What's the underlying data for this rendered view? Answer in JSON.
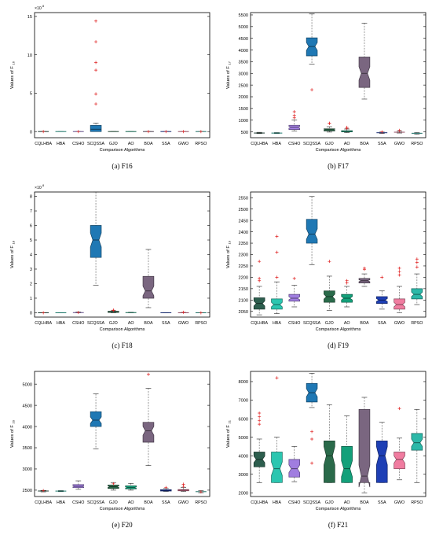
{
  "figure": {
    "x_label": "Comparison Algorithms",
    "categories": [
      "CQLHBA",
      "HBA",
      "CSHO",
      "SCQSSA",
      "GJO",
      "AO",
      "BOA",
      "SSA",
      "GWO",
      "RPSO"
    ],
    "colors": [
      "#2d5e4e",
      "#2bc6b0",
      "#a07de0",
      "#1f78b4",
      "#2a6a4a",
      "#13a07a",
      "#7a6680",
      "#1e3fb5",
      "#f07ca0",
      "#2cb8a8"
    ]
  },
  "chart_data": [
    {
      "id": "F16",
      "type": "box",
      "caption": "(a) F16",
      "ylabel": "Values of F",
      "ylabel_sub": "16",
      "multiplier": "×10",
      "multiplier_exp": "8",
      "ylim": [
        -0.8,
        15.5
      ],
      "yticks": [
        0,
        5,
        10,
        15
      ],
      "ytick_labels": [
        "0",
        "5",
        "10",
        "15"
      ],
      "notched": false,
      "boxes": [
        {
          "q1": 0,
          "med": 0,
          "q3": 0,
          "wl": 0,
          "wh": 0,
          "out": [
            0
          ]
        },
        {
          "q1": 0,
          "med": 0,
          "q3": 0,
          "wl": 0,
          "wh": 0,
          "out": []
        },
        {
          "q1": 0,
          "med": 0,
          "q3": 0,
          "wl": 0,
          "wh": 0,
          "out": [
            0
          ]
        },
        {
          "q1": 0,
          "med": 0.3,
          "q3": 0.8,
          "wl": 0,
          "wh": 1.1,
          "out": [
            14.4,
            11.7,
            9.0,
            8.0,
            4.9,
            3.6
          ]
        },
        {
          "q1": 0,
          "med": 0,
          "q3": 0,
          "wl": 0,
          "wh": 0,
          "out": []
        },
        {
          "q1": 0,
          "med": 0,
          "q3": 0,
          "wl": 0,
          "wh": 0,
          "out": []
        },
        {
          "q1": 0,
          "med": 0,
          "q3": 0,
          "wl": 0,
          "wh": 0,
          "out": [
            0
          ]
        },
        {
          "q1": 0,
          "med": 0,
          "q3": 0,
          "wl": 0,
          "wh": 0,
          "out": [
            0
          ]
        },
        {
          "q1": 0,
          "med": 0,
          "q3": 0,
          "wl": 0,
          "wh": 0,
          "out": [
            0
          ]
        },
        {
          "q1": 0,
          "med": 0,
          "q3": 0,
          "wl": 0,
          "wh": 0,
          "out": [
            0
          ]
        }
      ]
    },
    {
      "id": "F17",
      "type": "box",
      "caption": "(b) F17",
      "ylabel": "Values of F",
      "ylabel_sub": "17",
      "multiplier": "",
      "multiplier_exp": "",
      "ylim": [
        250,
        5600
      ],
      "yticks": [
        500,
        1000,
        1500,
        2000,
        2500,
        3000,
        3500,
        4000,
        4500,
        5000,
        5500
      ],
      "ytick_labels": [
        "500",
        "1000",
        "1500",
        "2000",
        "2500",
        "3000",
        "3500",
        "4000",
        "4500",
        "5000",
        "5500"
      ],
      "notched": true,
      "boxes": [
        {
          "q1": 440,
          "med": 450,
          "q3": 462,
          "wl": 430,
          "wh": 480,
          "out": []
        },
        {
          "q1": 440,
          "med": 448,
          "q3": 458,
          "wl": 430,
          "wh": 470,
          "out": []
        },
        {
          "q1": 600,
          "med": 700,
          "q3": 780,
          "wl": 540,
          "wh": 1000,
          "out": [
            1200,
            1360,
            1100
          ]
        },
        {
          "q1": 3750,
          "med": 4150,
          "q3": 4520,
          "wl": 3400,
          "wh": 5540,
          "out": [
            2300
          ]
        },
        {
          "q1": 540,
          "med": 590,
          "q3": 630,
          "wl": 490,
          "wh": 720,
          "out": [
            860,
            870
          ]
        },
        {
          "q1": 500,
          "med": 520,
          "q3": 550,
          "wl": 470,
          "wh": 620,
          "out": [
            650,
            690
          ]
        },
        {
          "q1": 2400,
          "med": 3000,
          "q3": 3700,
          "wl": 1900,
          "wh": 5150,
          "out": []
        },
        {
          "q1": 450,
          "med": 462,
          "q3": 475,
          "wl": 430,
          "wh": 490,
          "out": [
            500
          ]
        },
        {
          "q1": 470,
          "med": 485,
          "q3": 500,
          "wl": 450,
          "wh": 530,
          "out": [
            560
          ]
        },
        {
          "q1": 420,
          "med": 440,
          "q3": 455,
          "wl": 400,
          "wh": 470,
          "out": []
        }
      ]
    },
    {
      "id": "F18",
      "type": "box",
      "caption": "(c) F18",
      "ylabel": "Values of F",
      "ylabel_sub": "18",
      "multiplier": "×10",
      "multiplier_exp": "8",
      "ylim": [
        -0.3,
        8.3
      ],
      "yticks": [
        0,
        1,
        2,
        3,
        4,
        5,
        6,
        7,
        8
      ],
      "ytick_labels": [
        "0",
        "1",
        "2",
        "3",
        "4",
        "5",
        "6",
        "7",
        "8"
      ],
      "notched": true,
      "boxes": [
        {
          "q1": 0,
          "med": 0,
          "q3": 0,
          "wl": 0,
          "wh": 0,
          "out": [
            0
          ]
        },
        {
          "q1": 0,
          "med": 0,
          "q3": 0,
          "wl": 0,
          "wh": 0,
          "out": []
        },
        {
          "q1": 0,
          "med": 0.01,
          "q3": 0.03,
          "wl": 0,
          "wh": 0.05,
          "out": [
            0.02
          ]
        },
        {
          "q1": 3.8,
          "med": 5.0,
          "q3": 6.0,
          "wl": 1.9,
          "wh": 8.3,
          "out": []
        },
        {
          "q1": 0.02,
          "med": 0.06,
          "q3": 0.1,
          "wl": 0,
          "wh": 0.14,
          "out": [
            0.18,
            0.16
          ]
        },
        {
          "q1": 0,
          "med": 0.01,
          "q3": 0.02,
          "wl": 0,
          "wh": 0.03,
          "out": []
        },
        {
          "q1": 1.0,
          "med": 1.5,
          "q3": 2.5,
          "wl": 0.35,
          "wh": 4.35,
          "out": []
        },
        {
          "q1": 0,
          "med": 0,
          "q3": 0,
          "wl": 0,
          "wh": 0,
          "out": []
        },
        {
          "q1": 0,
          "med": 0,
          "q3": 0.01,
          "wl": 0,
          "wh": 0.02,
          "out": [
            0.03
          ]
        },
        {
          "q1": 0,
          "med": 0,
          "q3": 0,
          "wl": 0,
          "wh": 0,
          "out": [
            0
          ]
        }
      ]
    },
    {
      "id": "F19",
      "type": "box",
      "caption": "(d) F19",
      "ylabel": "Values of F",
      "ylabel_sub": "19",
      "multiplier": "",
      "multiplier_exp": "",
      "ylim": [
        2025,
        2575
      ],
      "yticks": [
        2050,
        2100,
        2150,
        2200,
        2250,
        2300,
        2350,
        2400,
        2450,
        2500,
        2550
      ],
      "ytick_labels": [
        "2050",
        "2100",
        "2150",
        "2200",
        "2250",
        "2300",
        "2350",
        "2400",
        "2450",
        "2500",
        "2550"
      ],
      "notched": true,
      "boxes": [
        {
          "q1": 2060,
          "med": 2085,
          "q3": 2110,
          "wl": 2035,
          "wh": 2160,
          "out": [
            2270,
            2195,
            2185
          ]
        },
        {
          "q1": 2060,
          "med": 2080,
          "q3": 2105,
          "wl": 2040,
          "wh": 2180,
          "out": [
            2380,
            2310,
            2200
          ]
        },
        {
          "q1": 2095,
          "med": 2108,
          "q3": 2125,
          "wl": 2070,
          "wh": 2165,
          "out": [
            2195
          ]
        },
        {
          "q1": 2350,
          "med": 2390,
          "q3": 2455,
          "wl": 2255,
          "wh": 2555,
          "out": []
        },
        {
          "q1": 2090,
          "med": 2115,
          "q3": 2140,
          "wl": 2055,
          "wh": 2205,
          "out": [
            2270
          ]
        },
        {
          "q1": 2090,
          "med": 2108,
          "q3": 2125,
          "wl": 2070,
          "wh": 2160,
          "out": [
            2185,
            2175
          ]
        },
        {
          "q1": 2175,
          "med": 2185,
          "q3": 2195,
          "wl": 2160,
          "wh": 2215,
          "out": [
            2235,
            2240
          ]
        },
        {
          "q1": 2085,
          "med": 2100,
          "q3": 2115,
          "wl": 2060,
          "wh": 2140,
          "out": [
            2200
          ]
        },
        {
          "q1": 2060,
          "med": 2080,
          "q3": 2105,
          "wl": 2045,
          "wh": 2160,
          "out": [
            2240,
            2225,
            2210
          ]
        },
        {
          "q1": 2105,
          "med": 2125,
          "q3": 2150,
          "wl": 2080,
          "wh": 2215,
          "out": [
            2280,
            2265,
            2245
          ]
        }
      ]
    },
    {
      "id": "F20",
      "type": "box",
      "caption": "(e) F20",
      "ylabel": "Values of F",
      "ylabel_sub": "20",
      "multiplier": "",
      "multiplier_exp": "",
      "ylim": [
        2350,
        5300
      ],
      "yticks": [
        2500,
        3000,
        3500,
        4000,
        4500,
        5000
      ],
      "ytick_labels": [
        "2500",
        "3000",
        "3500",
        "4000",
        "4500",
        "5000"
      ],
      "notched": true,
      "boxes": [
        {
          "q1": 2470,
          "med": 2480,
          "q3": 2490,
          "wl": 2460,
          "wh": 2495,
          "out": [
            2490
          ]
        },
        {
          "q1": 2470,
          "med": 2478,
          "q3": 2485,
          "wl": 2465,
          "wh": 2490,
          "out": []
        },
        {
          "q1": 2560,
          "med": 2590,
          "q3": 2630,
          "wl": 2520,
          "wh": 2720,
          "out": []
        },
        {
          "q1": 4000,
          "med": 4150,
          "q3": 4350,
          "wl": 3470,
          "wh": 4770,
          "out": []
        },
        {
          "q1": 2540,
          "med": 2580,
          "q3": 2620,
          "wl": 2500,
          "wh": 2680,
          "out": [
            2650
          ]
        },
        {
          "q1": 2530,
          "med": 2560,
          "q3": 2600,
          "wl": 2500,
          "wh": 2660,
          "out": []
        },
        {
          "q1": 3630,
          "med": 3900,
          "q3": 4100,
          "wl": 3080,
          "wh": 4900,
          "out": [
            5230
          ]
        },
        {
          "q1": 2480,
          "med": 2495,
          "q3": 2510,
          "wl": 2470,
          "wh": 2540,
          "out": [
            2560
          ]
        },
        {
          "q1": 2485,
          "med": 2500,
          "q3": 2515,
          "wl": 2470,
          "wh": 2560,
          "out": [
            2640,
            2590
          ]
        },
        {
          "q1": 2455,
          "med": 2465,
          "q3": 2475,
          "wl": 2440,
          "wh": 2490,
          "out": [
            2460
          ]
        }
      ]
    },
    {
      "id": "F21",
      "type": "box",
      "caption": "(f) F21",
      "ylabel": "Values of F",
      "ylabel_sub": "21",
      "multiplier": "",
      "multiplier_exp": "",
      "ylim": [
        1800,
        8550
      ],
      "yticks": [
        2000,
        3000,
        4000,
        5000,
        6000,
        7000,
        8000
      ],
      "ytick_labels": [
        "2000",
        "3000",
        "4000",
        "5000",
        "6000",
        "7000",
        "8000"
      ],
      "notched": true,
      "boxes": [
        {
          "q1": 3400,
          "med": 3800,
          "q3": 4200,
          "wl": 2550,
          "wh": 4900,
          "out": [
            6300,
            6100,
            5900,
            5700
          ]
        },
        {
          "q1": 2550,
          "med": 3300,
          "q3": 4200,
          "wl": 2550,
          "wh": 5000,
          "out": [
            8200
          ]
        },
        {
          "q1": 2850,
          "med": 3300,
          "q3": 3800,
          "wl": 2600,
          "wh": 4500,
          "out": []
        },
        {
          "q1": 6900,
          "med": 7400,
          "q3": 7900,
          "wl": 6600,
          "wh": 8450,
          "out": [
            5300,
            4900,
            3600
          ]
        },
        {
          "q1": 2550,
          "med": 4000,
          "q3": 4800,
          "wl": 2550,
          "wh": 6750,
          "out": []
        },
        {
          "q1": 2550,
          "med": 3300,
          "q3": 4500,
          "wl": 2550,
          "wh": 6150,
          "out": []
        },
        {
          "q1": 2550,
          "med": 2900,
          "q3": 6500,
          "wl": 2000,
          "wh": 7150,
          "out": []
        },
        {
          "q1": 2550,
          "med": 4000,
          "q3": 4800,
          "wl": 2550,
          "wh": 5800,
          "out": []
        },
        {
          "q1": 3300,
          "med": 3800,
          "q3": 4200,
          "wl": 2700,
          "wh": 4950,
          "out": [
            6550
          ]
        },
        {
          "q1": 4300,
          "med": 4700,
          "q3": 5200,
          "wl": 2550,
          "wh": 6500,
          "out": []
        }
      ]
    }
  ]
}
